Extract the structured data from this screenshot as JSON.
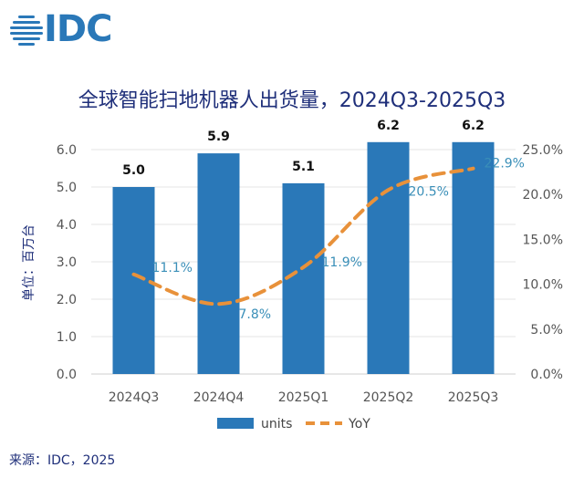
{
  "logo": {
    "text": "IDC",
    "icon": "idc-globe-icon"
  },
  "colors": {
    "bar": "#2a78b8",
    "line": "#e8913a",
    "title": "#1f2f7a",
    "axis_text": "#555555"
  },
  "chart_data": {
    "type": "bar",
    "title": "全球智能扫地机器人出货量，2024Q3-2025Q3",
    "ylabel": "单位：百万台",
    "categories": [
      "2024Q3",
      "2024Q4",
      "2025Q1",
      "2025Q2",
      "2025Q3"
    ],
    "series": [
      {
        "name": "units",
        "type": "bar",
        "values": [
          5.0,
          5.9,
          5.1,
          6.2,
          6.2
        ],
        "labels": [
          "5.0",
          "5.9",
          "5.1",
          "6.2",
          "6.2"
        ]
      },
      {
        "name": "YoY",
        "type": "line",
        "style": "dashed",
        "axis": "right",
        "values": [
          11.1,
          7.8,
          11.9,
          20.5,
          22.9
        ],
        "labels": [
          "11.1%",
          "7.8%",
          "11.9%",
          "20.5%",
          "22.9%"
        ]
      }
    ],
    "ylim": [
      0,
      6.0
    ],
    "y_ticks": [
      "0.0",
      "1.0",
      "2.0",
      "3.0",
      "4.0",
      "5.0",
      "6.0"
    ],
    "y2lim": [
      0,
      25
    ],
    "y2_ticks": [
      "0.0%",
      "5.0%",
      "10.0%",
      "15.0%",
      "20.0%",
      "25.0%"
    ],
    "grid": true,
    "legend": "bottom"
  },
  "source": "来源：IDC，2025"
}
